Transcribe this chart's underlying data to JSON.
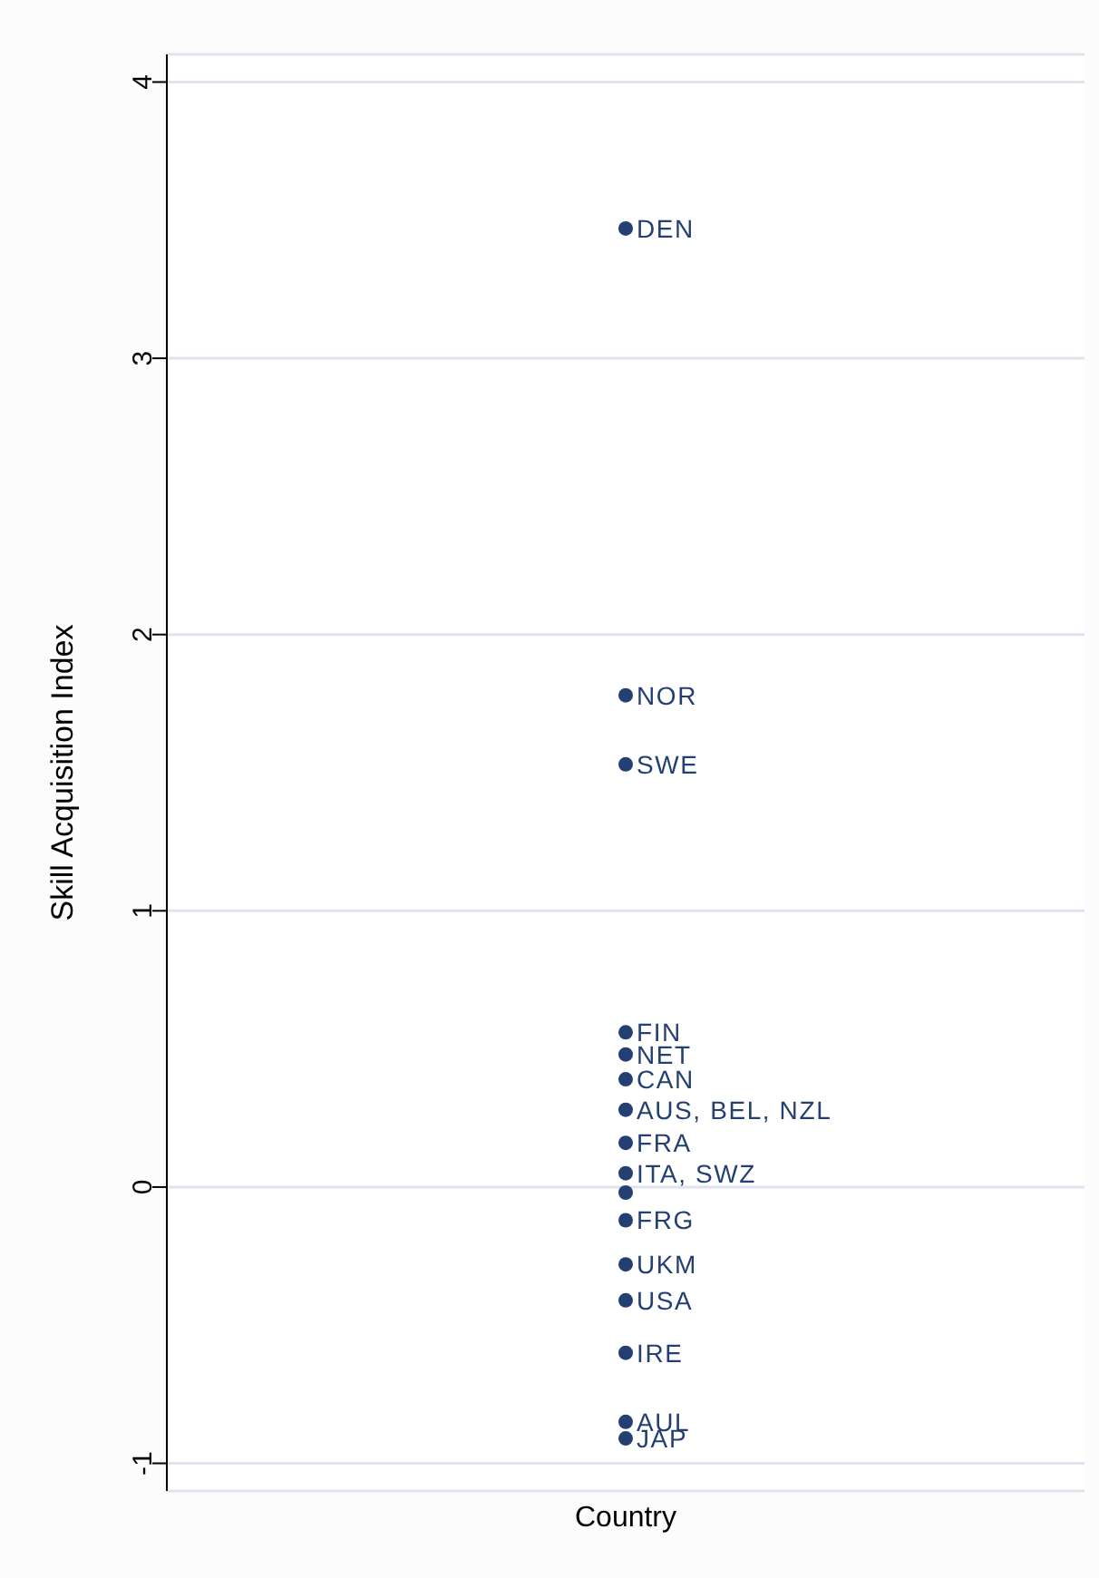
{
  "chart_data": {
    "type": "scatter",
    "xlabel": "Country",
    "ylabel": "Skill Acquisition Index",
    "categories": [
      null
    ],
    "series": [
      {
        "color": "#243f72",
        "values": [
          3.47
        ],
        "value_labels": [
          "DEN"
        ]
      },
      {
        "color": "#243f72",
        "values": [
          1.78
        ],
        "value_labels": [
          "NOR"
        ]
      },
      {
        "color": "#243f72",
        "values": [
          1.53
        ],
        "value_labels": [
          "SWE"
        ]
      },
      {
        "color": "#243f72",
        "values": [
          0.56
        ],
        "value_labels": [
          "FIN"
        ]
      },
      {
        "color": "#243f72",
        "values": [
          0.48
        ],
        "value_labels": [
          "NET"
        ]
      },
      {
        "color": "#243f72",
        "values": [
          0.39
        ],
        "value_labels": [
          "CAN"
        ]
      },
      {
        "color": "#243f72",
        "values": [
          0.28
        ],
        "value_labels": [
          "AUS, BEL, NZL"
        ]
      },
      {
        "color": "#243f72",
        "values": [
          0.16
        ],
        "value_labels": [
          "FRA"
        ]
      },
      {
        "color": "#243f72",
        "values": [
          0.05
        ],
        "value_labels": [
          "ITA, SWZ"
        ]
      },
      {
        "color": "#243f72",
        "values": [
          -0.02
        ],
        "value_labels": [
          null
        ]
      },
      {
        "color": "#243f72",
        "values": [
          -0.12
        ],
        "value_labels": [
          "FRG"
        ]
      },
      {
        "color": "#243f72",
        "values": [
          -0.28
        ],
        "value_labels": [
          "UKM"
        ]
      },
      {
        "color": "#243f72",
        "values": [
          -0.41
        ],
        "value_labels": [
          "USA"
        ]
      },
      {
        "color": "#243f72",
        "values": [
          -0.6
        ],
        "value_labels": [
          "IRE"
        ]
      },
      {
        "color": "#243f72",
        "values": [
          -0.85
        ],
        "value_labels": [
          "AUL"
        ]
      },
      {
        "color": "#243f72",
        "values": [
          -0.91
        ],
        "value_labels": [
          "JAP"
        ]
      }
    ],
    "ylim": [
      -1.1,
      4.1
    ],
    "yticks": [
      -1,
      0,
      1,
      2,
      3,
      4
    ],
    "grid": "y",
    "tick_labels": "y",
    "marker": "circle"
  }
}
